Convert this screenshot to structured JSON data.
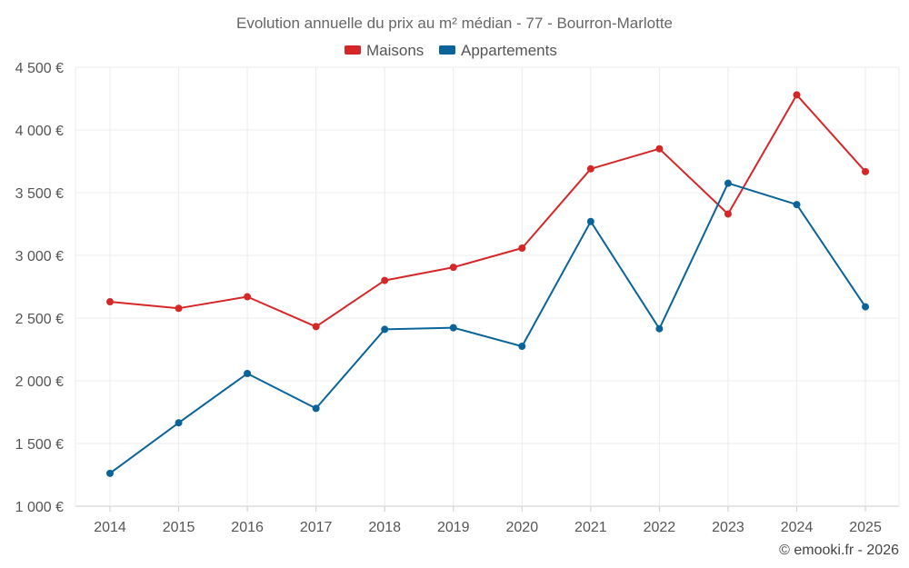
{
  "chart_data": {
    "type": "line",
    "title": "Evolution annuelle du prix au m² médian - 77 - Bourron-Marlotte",
    "categories": [
      "2014",
      "2015",
      "2016",
      "2017",
      "2018",
      "2019",
      "2020",
      "2021",
      "2022",
      "2023",
      "2024",
      "2025"
    ],
    "series": [
      {
        "name": "Maisons",
        "color": "#d62728",
        "values": [
          2630,
          2578,
          2670,
          2432,
          2800,
          2905,
          3058,
          3690,
          3850,
          3330,
          4280,
          3668
        ]
      },
      {
        "name": "Appartements",
        "color": "#0a6499",
        "values": [
          1262,
          1665,
          2058,
          1780,
          2410,
          2423,
          2275,
          3270,
          2415,
          3575,
          3405,
          2590
        ]
      }
    ],
    "ylim": [
      1000,
      4500
    ],
    "yticks": [
      1000,
      1500,
      2000,
      2500,
      3000,
      3500,
      4000,
      4500
    ],
    "ytick_labels": [
      "1 000 €",
      "1 500 €",
      "2 000 €",
      "2 500 €",
      "3 000 €",
      "3 500 €",
      "4 000 €",
      "4 500 €"
    ],
    "grid": true,
    "legend_position": "top-center"
  },
  "credit": "© emooki.fr - 2026"
}
